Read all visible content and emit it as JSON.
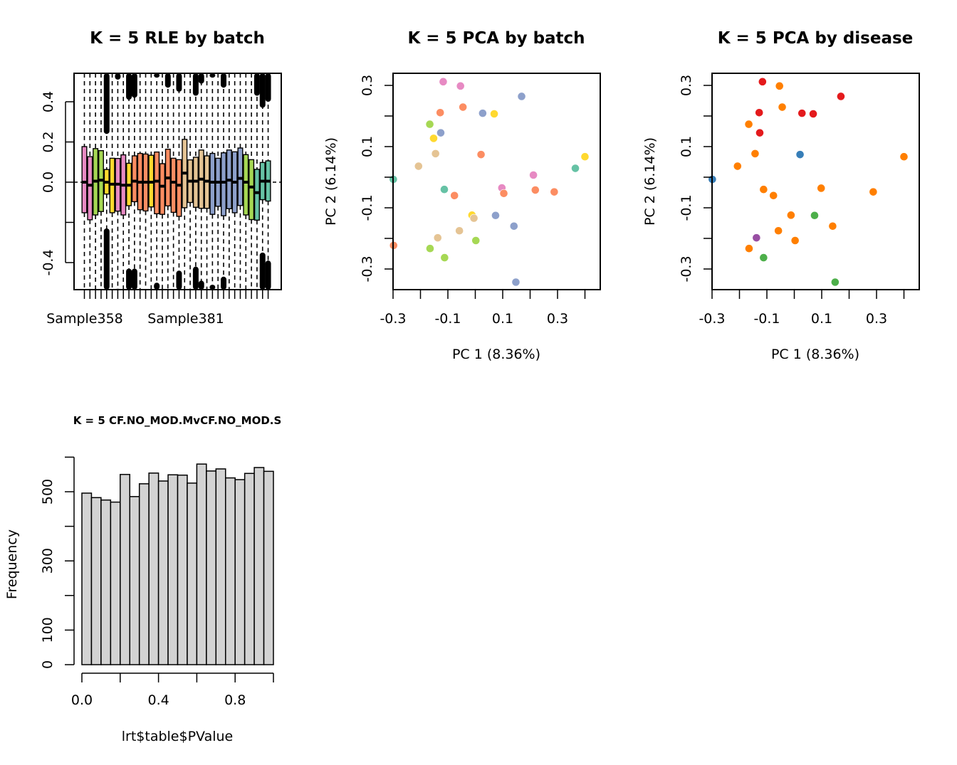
{
  "chart_data": [
    {
      "id": "rle",
      "type": "boxplot",
      "title": "K = 5 RLE by batch",
      "xlabel": "",
      "ylabel": "",
      "ylim": [
        -0.54,
        0.54
      ],
      "yticks": [
        -0.4,
        -0.2,
        0.0,
        0.2,
        0.4
      ],
      "ytick_labels": [
        "-0.4",
        "",
        "0.0",
        "0.2",
        "0.4"
      ],
      "xtick_labels": [
        {
          "index": 1,
          "label": "Sample358"
        },
        {
          "index": 7,
          "label": "Sample381"
        }
      ],
      "reference_line": 0.0,
      "batch_colors": {
        "teal": "#66C2A5",
        "orange": "#FC8D62",
        "blue": "#8DA0CB",
        "pink": "#E78AC3",
        "green": "#A6D854",
        "yellow": "#FFD92F",
        "tan": "#E5C494"
      },
      "boxes": [
        {
          "batch": "pink",
          "q1": -0.152,
          "median": 0.0,
          "q3": 0.177
        },
        {
          "batch": "pink",
          "q1": -0.187,
          "median": -0.015,
          "q3": 0.127
        },
        {
          "batch": "green",
          "q1": -0.163,
          "median": 0.005,
          "q3": 0.167
        },
        {
          "batch": "green",
          "q1": -0.146,
          "median": 0.01,
          "q3": 0.157
        },
        {
          "batch": "yellow",
          "q1": -0.059,
          "median": 0.0,
          "q3": 0.063,
          "outlier_low": -0.23,
          "outlier_high": 0.24
        },
        {
          "batch": "yellow",
          "q1": -0.152,
          "median": -0.01,
          "q3": 0.119
        },
        {
          "batch": "pink",
          "q1": -0.144,
          "median": -0.01,
          "q3": 0.118,
          "outlier_low": -0.53,
          "outlier_high": 0.51
        },
        {
          "batch": "pink",
          "q1": -0.163,
          "median": -0.015,
          "q3": 0.136
        },
        {
          "batch": "yellow",
          "q1": -0.117,
          "median": -0.015,
          "q3": 0.094,
          "outlier_low": -0.43,
          "outlier_high": 0.41
        },
        {
          "batch": "orange",
          "q1": -0.097,
          "median": 0.005,
          "q3": 0.131,
          "outlier_low": -0.43,
          "outlier_high": 0.42
        },
        {
          "batch": "orange",
          "q1": -0.137,
          "median": 0.0,
          "q3": 0.143
        },
        {
          "batch": "orange",
          "q1": -0.143,
          "median": 0.0,
          "q3": 0.14
        },
        {
          "batch": "yellow",
          "q1": -0.123,
          "median": 0.0,
          "q3": 0.134
        },
        {
          "batch": "orange",
          "q1": -0.157,
          "median": 0.005,
          "q3": 0.15,
          "outlier_low": -0.5,
          "outlier_high": 0.52
        },
        {
          "batch": "orange",
          "q1": -0.16,
          "median": -0.02,
          "q3": 0.092
        },
        {
          "batch": "orange",
          "q1": -0.118,
          "median": 0.021,
          "q3": 0.164,
          "outlier_high": 0.47
        },
        {
          "batch": "orange",
          "q1": -0.15,
          "median": 0.0,
          "q3": 0.119
        },
        {
          "batch": "orange",
          "q1": -0.17,
          "median": -0.015,
          "q3": 0.112,
          "outlier_low": -0.44,
          "outlier_high": 0.45
        },
        {
          "batch": "tan",
          "q1": -0.127,
          "median": 0.045,
          "q3": 0.213
        },
        {
          "batch": "tan",
          "q1": -0.101,
          "median": 0.005,
          "q3": 0.111
        },
        {
          "batch": "tan",
          "q1": -0.125,
          "median": 0.005,
          "q3": 0.124,
          "outlier_low": -0.42,
          "outlier_high": 0.43
        },
        {
          "batch": "tan",
          "q1": -0.13,
          "median": 0.015,
          "q3": 0.16,
          "outlier_low": -0.49,
          "outlier_high": 0.49
        },
        {
          "batch": "tan",
          "q1": -0.13,
          "median": 0.005,
          "q3": 0.131
        },
        {
          "batch": "blue",
          "q1": -0.16,
          "median": 0.0,
          "q3": 0.143,
          "outlier_low": -0.51,
          "outlier_high": 0.52
        },
        {
          "batch": "blue",
          "q1": -0.12,
          "median": 0.0,
          "q3": 0.119
        },
        {
          "batch": "blue",
          "q1": -0.167,
          "median": 0.0,
          "q3": 0.146,
          "outlier_low": -0.47,
          "outlier_high": 0.47
        },
        {
          "batch": "blue",
          "q1": -0.132,
          "median": 0.01,
          "q3": 0.16
        },
        {
          "batch": "blue",
          "q1": -0.152,
          "median": 0.0,
          "q3": 0.151
        },
        {
          "batch": "blue",
          "q1": -0.116,
          "median": 0.019,
          "q3": 0.17
        },
        {
          "batch": "green",
          "q1": -0.163,
          "median": 0.0,
          "q3": 0.137
        },
        {
          "batch": "green",
          "q1": -0.186,
          "median": -0.024,
          "q3": 0.112
        },
        {
          "batch": "teal",
          "q1": -0.189,
          "median": -0.052,
          "q3": 0.064,
          "outlier_high": 0.43
        },
        {
          "batch": "teal",
          "q1": -0.087,
          "median": 0.005,
          "q3": 0.098,
          "outlier_low": -0.35,
          "outlier_high": 0.37
        },
        {
          "batch": "teal",
          "q1": -0.094,
          "median": 0.005,
          "q3": 0.106,
          "outlier_low": -0.39,
          "outlier_high": 0.4
        }
      ]
    },
    {
      "id": "pca-batch",
      "type": "scatter",
      "title": "K = 5 PCA by batch",
      "xlabel": "PC 1 (8.36%)",
      "ylabel": "PC 2 (6.14%)",
      "xlim": [
        -0.33,
        0.43
      ],
      "ylim": [
        -0.37,
        0.34
      ],
      "xticks": [
        -0.3,
        -0.2,
        -0.1,
        0.0,
        0.1,
        0.2,
        0.3,
        0.4
      ],
      "xtick_labels": [
        "-0.3",
        "",
        "-0.1",
        "",
        "0.1",
        "",
        "0.3",
        ""
      ],
      "yticks": [
        -0.3,
        -0.2,
        -0.1,
        0.0,
        0.1,
        0.2,
        0.3
      ],
      "ytick_labels": [
        "-0.3",
        "",
        "-0.1",
        "",
        "0.1",
        "",
        "0.3"
      ],
      "points": [
        {
          "x": -0.117,
          "y": 0.312,
          "color": "#E78AC3"
        },
        {
          "x": -0.054,
          "y": 0.298,
          "color": "#E78AC3"
        },
        {
          "x": 0.169,
          "y": 0.264,
          "color": "#8DA0CB"
        },
        {
          "x": -0.045,
          "y": 0.229,
          "color": "#FC8D62"
        },
        {
          "x": -0.128,
          "y": 0.211,
          "color": "#FC8D62"
        },
        {
          "x": 0.027,
          "y": 0.209,
          "color": "#8DA0CB"
        },
        {
          "x": 0.069,
          "y": 0.207,
          "color": "#FFD92F"
        },
        {
          "x": -0.166,
          "y": 0.173,
          "color": "#A6D854"
        },
        {
          "x": -0.126,
          "y": 0.145,
          "color": "#8DA0CB"
        },
        {
          "x": -0.152,
          "y": 0.127,
          "color": "#FFD92F"
        },
        {
          "x": -0.145,
          "y": 0.077,
          "color": "#E5C494"
        },
        {
          "x": 0.021,
          "y": 0.074,
          "color": "#FC8D62"
        },
        {
          "x": 0.4,
          "y": 0.067,
          "color": "#FFD92F"
        },
        {
          "x": -0.207,
          "y": 0.036,
          "color": "#E5C494"
        },
        {
          "x": 0.365,
          "y": 0.029,
          "color": "#66C2A5"
        },
        {
          "x": 0.212,
          "y": 0.007,
          "color": "#E78AC3"
        },
        {
          "x": -0.299,
          "y": -0.007,
          "color": "#66C2A5"
        },
        {
          "x": -0.113,
          "y": -0.04,
          "color": "#66C2A5"
        },
        {
          "x": -0.076,
          "y": -0.06,
          "color": "#FC8D62"
        },
        {
          "x": 0.097,
          "y": -0.035,
          "color": "#E78AC3"
        },
        {
          "x": 0.104,
          "y": -0.053,
          "color": "#FC8D62"
        },
        {
          "x": 0.219,
          "y": -0.042,
          "color": "#FC8D62"
        },
        {
          "x": 0.288,
          "y": -0.048,
          "color": "#FC8D62"
        },
        {
          "x": -0.012,
          "y": -0.124,
          "color": "#FFD92F"
        },
        {
          "x": -0.005,
          "y": -0.134,
          "color": "#E5C494"
        },
        {
          "x": 0.074,
          "y": -0.125,
          "color": "#8DA0CB"
        },
        {
          "x": 0.141,
          "y": -0.16,
          "color": "#8DA0CB"
        },
        {
          "x": -0.058,
          "y": -0.175,
          "color": "#E5C494"
        },
        {
          "x": -0.137,
          "y": -0.198,
          "color": "#E5C494"
        },
        {
          "x": 0.002,
          "y": -0.207,
          "color": "#A6D854"
        },
        {
          "x": -0.298,
          "y": -0.223,
          "color": "#FC8D62"
        },
        {
          "x": -0.165,
          "y": -0.233,
          "color": "#A6D854"
        },
        {
          "x": -0.112,
          "y": -0.263,
          "color": "#A6D854"
        },
        {
          "x": 0.148,
          "y": -0.343,
          "color": "#8DA0CB"
        }
      ]
    },
    {
      "id": "pca-disease",
      "type": "scatter",
      "title": "K = 5 PCA by disease",
      "xlabel": "PC 1 (8.36%)",
      "ylabel": "PC 2 (6.14%)",
      "xlim": [
        -0.33,
        0.43
      ],
      "ylim": [
        -0.37,
        0.34
      ],
      "xticks": [
        -0.3,
        -0.2,
        -0.1,
        0.0,
        0.1,
        0.2,
        0.3,
        0.4
      ],
      "xtick_labels": [
        "-0.3",
        "",
        "-0.1",
        "",
        "0.1",
        "",
        "0.3",
        ""
      ],
      "yticks": [
        -0.3,
        -0.2,
        -0.1,
        0.0,
        0.1,
        0.2,
        0.3
      ],
      "ytick_labels": [
        "-0.3",
        "",
        "-0.1",
        "",
        "0.1",
        "",
        "0.3"
      ],
      "points": [
        {
          "x": -0.116,
          "y": 0.312,
          "color": "#E41A1C"
        },
        {
          "x": -0.054,
          "y": 0.298,
          "color": "#FF7F00"
        },
        {
          "x": 0.17,
          "y": 0.264,
          "color": "#E41A1C"
        },
        {
          "x": -0.044,
          "y": 0.229,
          "color": "#FF7F00"
        },
        {
          "x": -0.128,
          "y": 0.211,
          "color": "#E41A1C"
        },
        {
          "x": 0.028,
          "y": 0.209,
          "color": "#E41A1C"
        },
        {
          "x": 0.069,
          "y": 0.207,
          "color": "#E41A1C"
        },
        {
          "x": -0.166,
          "y": 0.173,
          "color": "#FF7F00"
        },
        {
          "x": -0.126,
          "y": 0.145,
          "color": "#E41A1C"
        },
        {
          "x": -0.143,
          "y": 0.077,
          "color": "#FF7F00"
        },
        {
          "x": 0.021,
          "y": 0.074,
          "color": "#377EB8"
        },
        {
          "x": 0.4,
          "y": 0.067,
          "color": "#FF7F00"
        },
        {
          "x": -0.207,
          "y": 0.036,
          "color": "#FF7F00"
        },
        {
          "x": -0.299,
          "y": -0.007,
          "color": "#377EB8"
        },
        {
          "x": -0.112,
          "y": -0.04,
          "color": "#FF7F00"
        },
        {
          "x": -0.076,
          "y": -0.06,
          "color": "#FF7F00"
        },
        {
          "x": 0.098,
          "y": -0.036,
          "color": "#FF7F00"
        },
        {
          "x": 0.288,
          "y": -0.048,
          "color": "#FF7F00"
        },
        {
          "x": -0.012,
          "y": -0.124,
          "color": "#FF7F00"
        },
        {
          "x": 0.074,
          "y": -0.125,
          "color": "#4DAF4A"
        },
        {
          "x": 0.14,
          "y": -0.16,
          "color": "#FF7F00"
        },
        {
          "x": -0.058,
          "y": -0.175,
          "color": "#FF7F00"
        },
        {
          "x": -0.138,
          "y": -0.198,
          "color": "#984EA3"
        },
        {
          "x": 0.003,
          "y": -0.207,
          "color": "#FF7F00"
        },
        {
          "x": -0.165,
          "y": -0.233,
          "color": "#FF7F00"
        },
        {
          "x": -0.112,
          "y": -0.263,
          "color": "#4DAF4A"
        },
        {
          "x": 0.149,
          "y": -0.343,
          "color": "#4DAF4A"
        }
      ]
    },
    {
      "id": "pvalue-hist",
      "type": "bar",
      "title": "K = 5 CF.NO_MOD.MvCF.NO_MOD.S",
      "xlabel": "lrt$table$PValue",
      "ylabel": "Frequency",
      "xlim": [
        0,
        1
      ],
      "ylim": [
        0,
        600
      ],
      "xticks": [
        0.0,
        0.2,
        0.4,
        0.6,
        0.8,
        1.0
      ],
      "xtick_labels": [
        "0.0",
        "",
        "0.4",
        "",
        "0.8",
        ""
      ],
      "yticks": [
        0,
        100,
        200,
        300,
        400,
        500,
        600
      ],
      "ytick_labels": [
        "0",
        "100",
        "",
        "300",
        "",
        "500",
        ""
      ],
      "bin_width": 0.05,
      "bar_color": "#D3D3D3",
      "categories": [
        "0-0.05",
        "0.05-0.1",
        "0.1-0.15",
        "0.15-0.2",
        "0.2-0.25",
        "0.25-0.3",
        "0.3-0.35",
        "0.35-0.4",
        "0.4-0.45",
        "0.45-0.5",
        "0.5-0.55",
        "0.55-0.6",
        "0.6-0.65",
        "0.65-0.7",
        "0.7-0.75",
        "0.75-0.8",
        "0.8-0.85",
        "0.85-0.9",
        "0.9-0.95",
        "0.95-1"
      ],
      "values": [
        496,
        483,
        476,
        470,
        550,
        486,
        523,
        554,
        531,
        549,
        548,
        525,
        580,
        560,
        566,
        540,
        535,
        553,
        570,
        559
      ]
    }
  ]
}
